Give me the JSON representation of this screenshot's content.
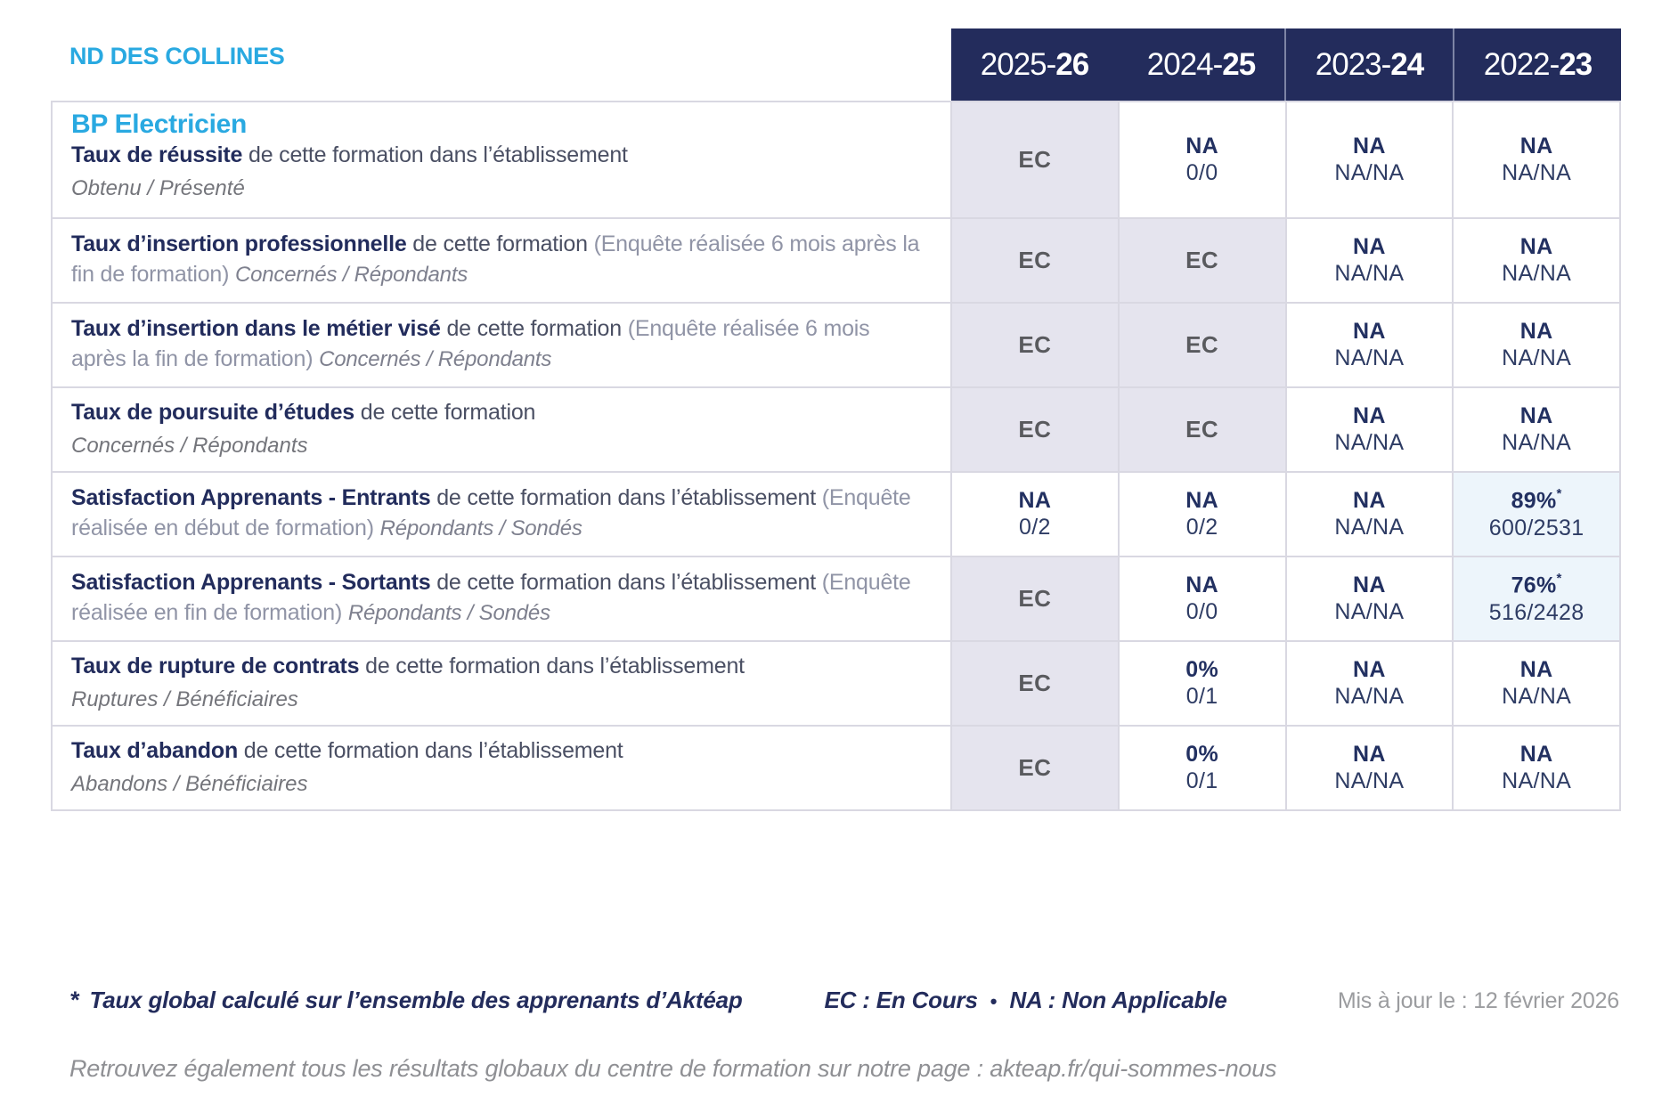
{
  "colors": {
    "accent_cyan": "#29a9e1",
    "navy": "#232c5c",
    "ec_cell_bg": "#e5e4ee",
    "highlight_cell_bg": "#edf5fb",
    "grid_line": "#d9d8e2"
  },
  "school_name": "ND DES COLLINES",
  "program_title": "BP Electricien",
  "year_columns": [
    {
      "prefix": "2025-",
      "bold": "26"
    },
    {
      "prefix": "2024-",
      "bold": "25"
    },
    {
      "prefix": "2023-",
      "bold": "24"
    },
    {
      "prefix": "2022-",
      "bold": "23"
    }
  ],
  "rows": [
    {
      "title": "Taux de réussite",
      "desc": "de cette formation dans l’établissement",
      "block_italic": "Obtenu / Présenté",
      "cells": [
        {
          "main": "EC"
        },
        {
          "main": "NA",
          "sub": "0/0"
        },
        {
          "main": "NA",
          "sub": "NA/NA"
        },
        {
          "main": "NA",
          "sub": "NA/NA"
        }
      ]
    },
    {
      "title": "Taux d’insertion professionnelle",
      "desc": "de cette formation",
      "paren": "(Enquête réalisée 6 mois après la fin de formation)",
      "inline_italic": "Concernés / Répondants",
      "cells": [
        {
          "main": "EC"
        },
        {
          "main": "EC"
        },
        {
          "main": "NA",
          "sub": "NA/NA"
        },
        {
          "main": "NA",
          "sub": "NA/NA"
        }
      ]
    },
    {
      "title": "Taux d’insertion dans le métier visé",
      "desc": "de cette formation",
      "paren": "(Enquête réalisée 6 mois après la fin de formation)",
      "inline_italic": "Concernés / Répondants",
      "cells": [
        {
          "main": "EC"
        },
        {
          "main": "EC"
        },
        {
          "main": "NA",
          "sub": "NA/NA"
        },
        {
          "main": "NA",
          "sub": "NA/NA"
        }
      ]
    },
    {
      "title": "Taux de poursuite d’études",
      "desc": "de cette formation",
      "block_italic": "Concernés / Répondants",
      "cells": [
        {
          "main": "EC"
        },
        {
          "main": "EC"
        },
        {
          "main": "NA",
          "sub": "NA/NA"
        },
        {
          "main": "NA",
          "sub": "NA/NA"
        }
      ]
    },
    {
      "title": "Satisfaction Apprenants - Entrants",
      "desc": "de cette formation dans l’établissement",
      "paren": "(Enquête réalisée en début de formation)",
      "inline_italic": "Répondants / Sondés",
      "cells": [
        {
          "main": "NA",
          "sub": "0/2"
        },
        {
          "main": "NA",
          "sub": "0/2"
        },
        {
          "main": "NA",
          "sub": "NA/NA"
        },
        {
          "main": "89%",
          "star": "*",
          "sub": "600/2531"
        }
      ]
    },
    {
      "title": "Satisfaction Apprenants - Sortants",
      "desc": "de cette formation dans l’établissement",
      "paren": "(Enquête réalisée en fin de formation)",
      "inline_italic": "Répondants / Sondés",
      "cells": [
        {
          "main": "EC"
        },
        {
          "main": "NA",
          "sub": "0/0"
        },
        {
          "main": "NA",
          "sub": "NA/NA"
        },
        {
          "main": "76%",
          "star": "*",
          "sub": "516/2428"
        }
      ]
    },
    {
      "title": "Taux de rupture de contrats",
      "desc": "de cette formation dans l’établissement",
      "block_italic": "Ruptures / Bénéficiaires",
      "cells": [
        {
          "main": "EC"
        },
        {
          "main": "0%",
          "sub": "0/1"
        },
        {
          "main": "NA",
          "sub": "NA/NA"
        },
        {
          "main": "NA",
          "sub": "NA/NA"
        }
      ]
    },
    {
      "title": "Taux d’abandon",
      "desc": "de cette formation dans l’établissement",
      "block_italic": "Abandons / Bénéficiaires",
      "cells": [
        {
          "main": "EC"
        },
        {
          "main": "0%",
          "sub": "0/1"
        },
        {
          "main": "NA",
          "sub": "NA/NA"
        },
        {
          "main": "NA",
          "sub": "NA/NA"
        }
      ]
    }
  ],
  "footer": {
    "asterisk": "*",
    "note": "Taux global calculé sur l’ensemble des apprenants d’Aktéap",
    "legend_ec": "EC : En Cours",
    "legend_bullet": "•",
    "legend_na": "NA : Non Applicable",
    "updated": "Mis à jour le : 12 février 2026",
    "bottom_note": "Retrouvez également tous les résultats globaux du centre de formation sur notre page : akteap.fr/qui-sommes-nous"
  }
}
